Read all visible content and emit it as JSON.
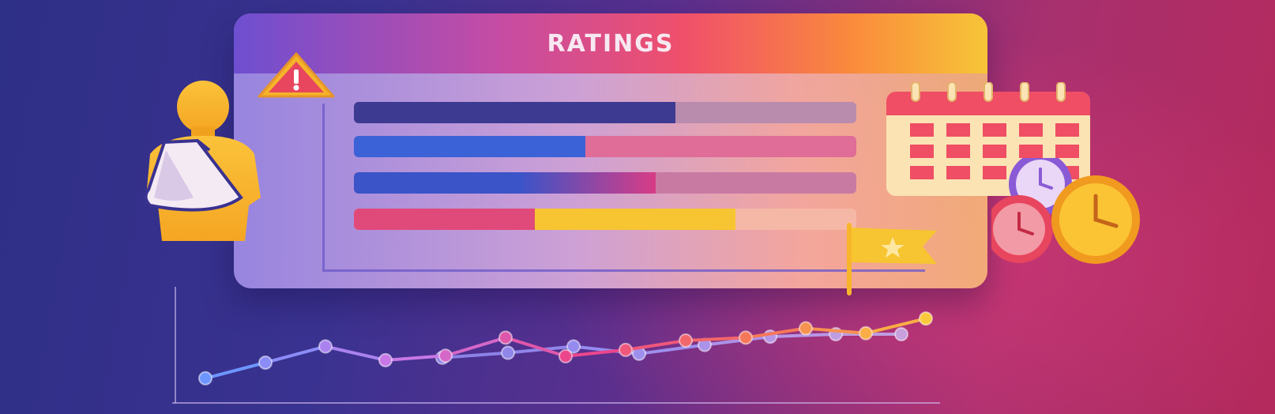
{
  "panel": {
    "title": "RATINGS"
  },
  "rating_bars": [
    {
      "fill": 0.64,
      "fill_color": "#3d3a92",
      "track_color": "#b98cae"
    },
    {
      "fill": 0.46,
      "fill_color": "#3b62d6",
      "track_color": "#e06c98"
    },
    {
      "fill": 0.6,
      "fill_color": "#3b54c8",
      "second_color": "#d83c86",
      "track_color": "#c97aa3"
    },
    {
      "fill": 0.76,
      "fill_color": "#e04a7a",
      "second_color": "#f7c531",
      "split": 0.36,
      "track_color": "#f6b8a6"
    }
  ],
  "icons": {
    "left": "injured-person-arm-sling-icon",
    "warning": "warning-triangle-icon",
    "calendar": "calendar-icon",
    "clocks": "clocks-icon",
    "flag": "star-flag-icon"
  },
  "trend_chart": {
    "series_a": [
      0.1,
      0.42,
      0.75,
      0.47,
      0.56,
      0.93,
      0.55,
      0.68,
      0.87,
      0.93,
      1.12,
      1.02,
      1.32
    ],
    "series_b": [
      0.0,
      0.0,
      0.52,
      0.62,
      0.75,
      0.6,
      0.78,
      0.95,
      1.0,
      1.0
    ]
  },
  "colors": {
    "accent_yellow": "#f7c531",
    "accent_red": "#e8455e",
    "accent_purple": "#6e4fd0"
  }
}
